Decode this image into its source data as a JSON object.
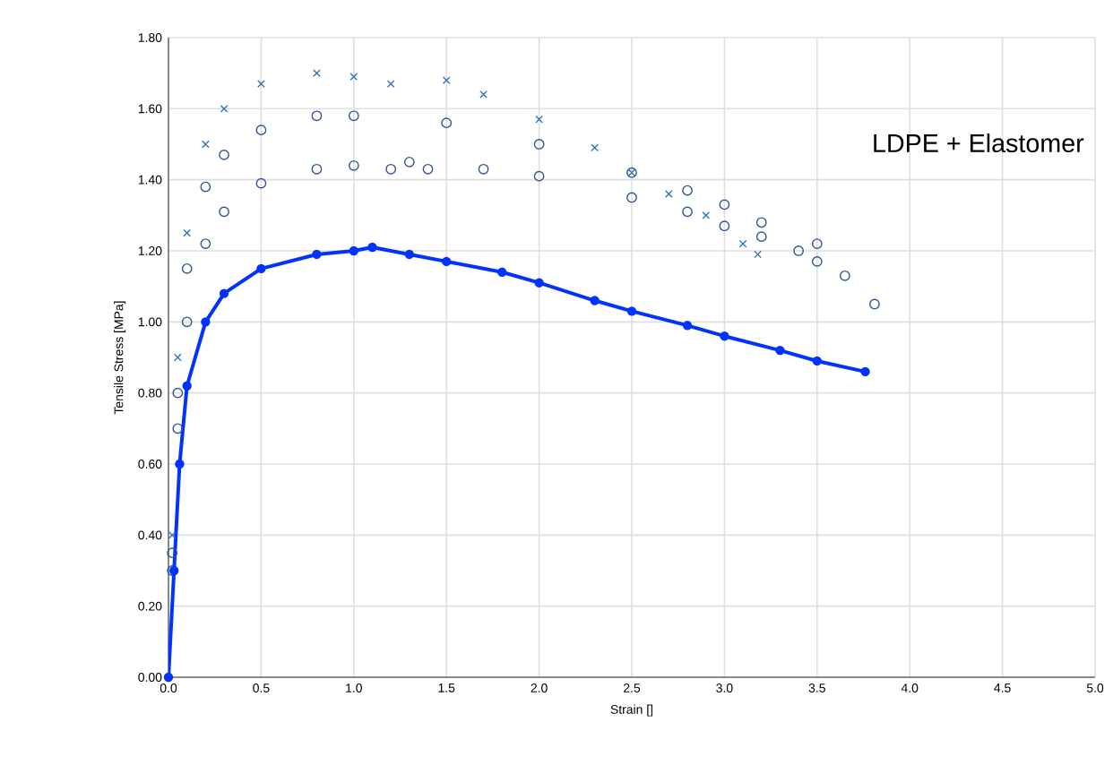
{
  "chart_data": {
    "type": "scatter",
    "title": "LDPE + Elastomer",
    "xlabel": "Strain []",
    "ylabel": "Tensile Stress [MPa]",
    "xlim": [
      0,
      5
    ],
    "ylim": [
      0,
      1.8
    ],
    "grid": true,
    "xticks": [
      {
        "value": 0,
        "label": "0.0"
      },
      {
        "value": 0.5,
        "label": "0.5"
      },
      {
        "value": 1,
        "label": "1.0"
      },
      {
        "value": 1.5,
        "label": "1.5"
      },
      {
        "value": 2,
        "label": "2.0"
      },
      {
        "value": 2.5,
        "label": "2.5"
      },
      {
        "value": 3,
        "label": "3.0"
      },
      {
        "value": 3.5,
        "label": "3.5"
      },
      {
        "value": 4,
        "label": "4.0"
      },
      {
        "value": 4.5,
        "label": "4.5"
      },
      {
        "value": 5,
        "label": "5.0"
      }
    ],
    "yticks": [
      {
        "value": 0,
        "label": "0.00"
      },
      {
        "value": 0.2,
        "label": "0.20"
      },
      {
        "value": 0.4,
        "label": "0.40"
      },
      {
        "value": 0.6,
        "label": "0.60"
      },
      {
        "value": 0.8,
        "label": "0.80"
      },
      {
        "value": 1,
        "label": "1.00"
      },
      {
        "value": 1.2,
        "label": "1.20"
      },
      {
        "value": 1.4,
        "label": "1.40"
      },
      {
        "value": 1.6,
        "label": "1.60"
      },
      {
        "value": 1.8,
        "label": "1.80"
      }
    ],
    "series": [
      {
        "color": "#2e75b6",
        "marker": "cross",
        "x": [
          0.02,
          0.05,
          0.1,
          0.2,
          0.3,
          0.5,
          0.8,
          1.0,
          1.2,
          1.5,
          1.7,
          2.0,
          2.3,
          2.5,
          2.7,
          2.9,
          3.1,
          3.18
        ],
        "values": [
          0.4,
          0.9,
          1.25,
          1.5,
          1.6,
          1.67,
          1.7,
          1.69,
          1.67,
          1.68,
          1.64,
          1.57,
          1.49,
          1.42,
          1.36,
          1.3,
          1.22,
          1.19
        ]
      },
      {
        "color": "#2f5597",
        "marker": "circle",
        "x": [
          0.02,
          0.05,
          0.1,
          0.2,
          0.3,
          0.5,
          0.8,
          1.0,
          1.5,
          2.0,
          2.5,
          2.8,
          3.0,
          3.2,
          3.5,
          3.65,
          3.81
        ],
        "values": [
          0.35,
          0.8,
          1.15,
          1.38,
          1.47,
          1.54,
          1.58,
          1.58,
          1.56,
          1.5,
          1.42,
          1.37,
          1.33,
          1.28,
          1.22,
          1.13,
          1.05
        ]
      },
      {
        "color": "#2f5597",
        "marker": "circle",
        "x": [
          0.02,
          0.05,
          0.1,
          0.2,
          0.3,
          0.5,
          0.8,
          1.0,
          1.2,
          1.3,
          1.4,
          1.7,
          2.0,
          2.5,
          2.8,
          3.0,
          3.2,
          3.4,
          3.5
        ],
        "values": [
          0.3,
          0.7,
          1.0,
          1.22,
          1.31,
          1.39,
          1.43,
          1.44,
          1.43,
          1.45,
          1.43,
          1.43,
          1.41,
          1.35,
          1.31,
          1.27,
          1.24,
          1.2,
          1.17
        ]
      },
      {
        "type": "line",
        "color": "#0033ff",
        "marker": "circle",
        "x": [
          0,
          0.03,
          0.06,
          0.1,
          0.2,
          0.3,
          0.5,
          0.8,
          1.0,
          1.1,
          1.3,
          1.5,
          1.8,
          2.0,
          2.3,
          2.5,
          2.8,
          3.0,
          3.3,
          3.5,
          3.76
        ],
        "values": [
          0,
          0.3,
          0.6,
          0.82,
          1.0,
          1.08,
          1.15,
          1.19,
          1.2,
          1.21,
          1.19,
          1.17,
          1.14,
          1.11,
          1.06,
          1.03,
          0.99,
          0.96,
          0.92,
          0.89,
          0.86
        ]
      }
    ]
  }
}
